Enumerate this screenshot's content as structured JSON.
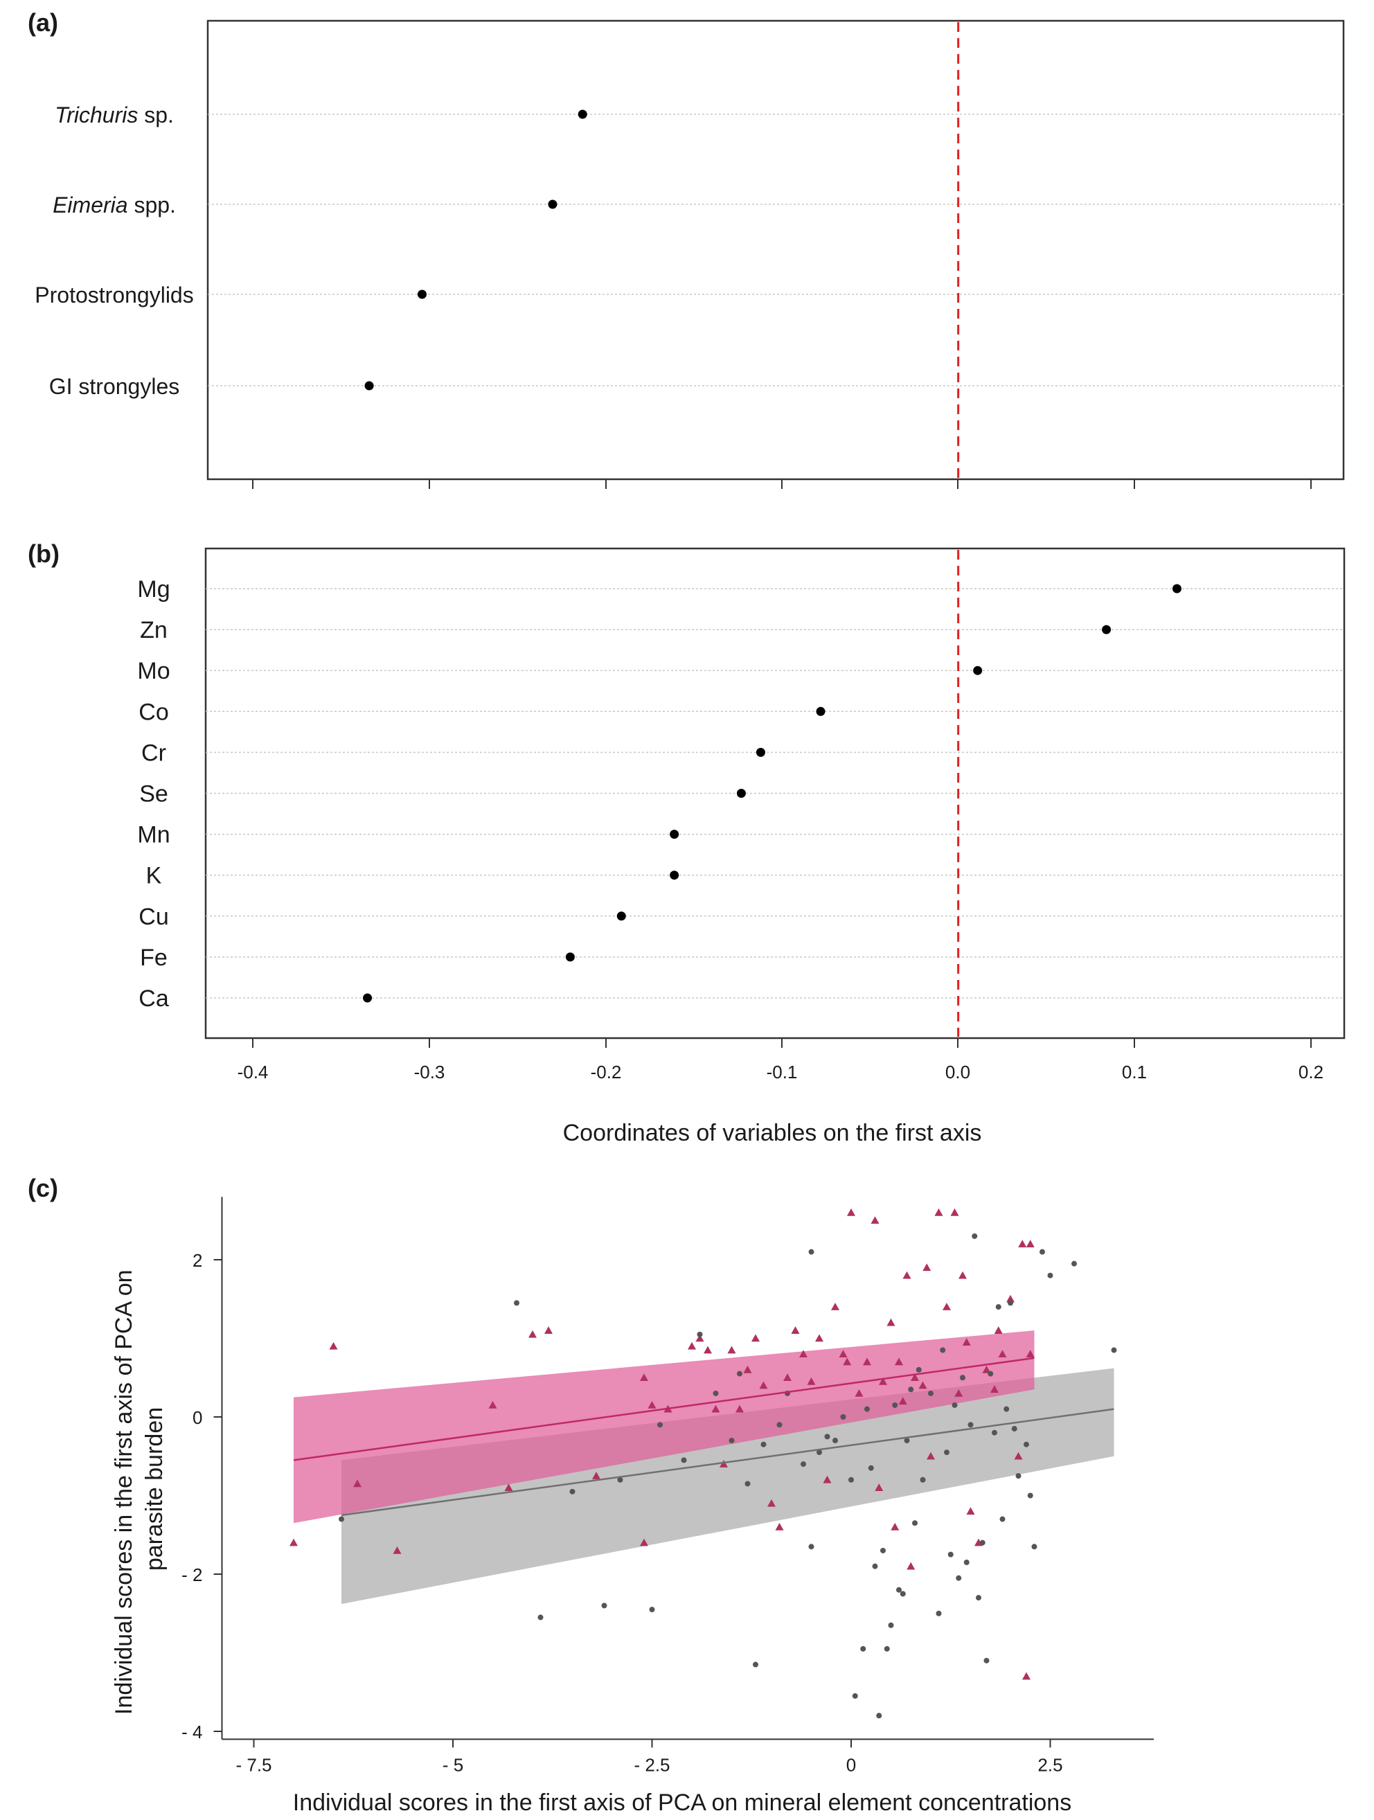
{
  "chart_data": [
    {
      "panel": "(a)",
      "type": "scatter",
      "categories": [
        "Trichuris sp.",
        "Eimeria spp.",
        "Protostrongylids",
        "GI strongyles"
      ],
      "category_labels": [
        {
          "italic": "Trichuris",
          "rest": " sp."
        },
        {
          "italic": "Eimeria",
          "rest": " spp."
        },
        {
          "italic": "",
          "rest": "Protostrongylids"
        },
        {
          "italic": "",
          "rest": "GI strongyles"
        }
      ],
      "values": [
        -0.213,
        -0.23,
        -0.304,
        -0.334
      ],
      "xlim": [
        -0.425,
        0.225
      ],
      "reference_line": 0.0,
      "grid": true,
      "xlabel": "",
      "ylabel": ""
    },
    {
      "panel": "(b)",
      "type": "scatter",
      "categories": [
        "Mg",
        "Zn",
        "Mo",
        "Co",
        "Cr",
        "Se",
        "Mn",
        "K",
        "Cu",
        "Fe",
        "Ca"
      ],
      "values": [
        0.124,
        0.084,
        0.011,
        -0.078,
        -0.112,
        -0.123,
        -0.161,
        -0.161,
        -0.191,
        -0.22,
        -0.335
      ],
      "xlim": [
        -0.425,
        0.225
      ],
      "xticks": [
        "-0.4",
        "-0.3",
        "-0.2",
        "-0.1",
        "0.0",
        "0.1",
        "0.2"
      ],
      "reference_line": 0.0,
      "grid": true,
      "xlabel": "Coordinates of variables on the first axis",
      "ylabel": ""
    },
    {
      "panel": "(c)",
      "type": "scatter",
      "xlabel": "Individual scores in the first axis of PCA on mineral element concentrations",
      "ylabel": [
        "Individual scores in the first axis of PCA on",
        "parasite burden"
      ],
      "xlim": [
        -7.9,
        3.8
      ],
      "ylim": [
        -4.1,
        2.8
      ],
      "xticks": [
        {
          "v": -7.5,
          "label": "- 7.5"
        },
        {
          "v": -5,
          "label": "- 5"
        },
        {
          "v": -2.5,
          "label": "- 2.5"
        },
        {
          "v": 0,
          "label": "0"
        },
        {
          "v": 2.5,
          "label": "2.5"
        }
      ],
      "yticks": [
        {
          "v": -4,
          "label": "- 4"
        },
        {
          "v": -2,
          "label": "- 2"
        },
        {
          "v": 0,
          "label": "0"
        },
        {
          "v": 2,
          "label": "2"
        }
      ],
      "series": [
        {
          "name": "pink",
          "marker": "triangle",
          "color": "#b03060",
          "fit_color": "#c02868",
          "band_color": "#e0609a",
          "fit": {
            "x0": -7.0,
            "y0": -0.55,
            "x1": 2.3,
            "y1": 0.75
          },
          "band": {
            "upper": [
              [
                -7.0,
                0.25
              ],
              [
                2.3,
                1.1
              ]
            ],
            "lower": [
              [
                -7.0,
                -1.35
              ],
              [
                2.3,
                0.35
              ]
            ]
          },
          "points": [
            [
              -6.5,
              0.9
            ],
            [
              -7.0,
              -1.6
            ],
            [
              -6.2,
              -0.85
            ],
            [
              -5.7,
              -1.7
            ],
            [
              -4.5,
              0.15
            ],
            [
              -4.3,
              -0.9
            ],
            [
              -4.0,
              1.05
            ],
            [
              -3.8,
              1.1
            ],
            [
              -3.2,
              -0.75
            ],
            [
              -2.6,
              0.5
            ],
            [
              -2.6,
              -1.6
            ],
            [
              -2.5,
              0.15
            ],
            [
              -2.3,
              0.1
            ],
            [
              -2.0,
              0.9
            ],
            [
              -1.9,
              1.0
            ],
            [
              -1.8,
              0.85
            ],
            [
              -1.6,
              -0.6
            ],
            [
              -1.5,
              0.85
            ],
            [
              -1.4,
              0.1
            ],
            [
              -1.3,
              0.6
            ],
            [
              -1.2,
              1.0
            ],
            [
              -1.1,
              0.4
            ],
            [
              -1.0,
              -1.1
            ],
            [
              -0.9,
              -1.4
            ],
            [
              -0.8,
              0.5
            ],
            [
              -0.7,
              1.1
            ],
            [
              -0.6,
              0.8
            ],
            [
              -0.5,
              0.45
            ],
            [
              -0.4,
              1.0
            ],
            [
              -0.3,
              -0.8
            ],
            [
              -0.2,
              1.4
            ],
            [
              -0.1,
              0.8
            ],
            [
              0.0,
              2.6
            ],
            [
              0.1,
              0.3
            ],
            [
              0.2,
              0.7
            ],
            [
              0.3,
              2.5
            ],
            [
              0.35,
              -0.9
            ],
            [
              0.4,
              0.45
            ],
            [
              0.5,
              1.2
            ],
            [
              0.55,
              -1.4
            ],
            [
              0.6,
              0.7
            ],
            [
              0.7,
              1.8
            ],
            [
              0.75,
              -1.9
            ],
            [
              0.8,
              0.5
            ],
            [
              0.9,
              0.4
            ],
            [
              0.95,
              1.9
            ],
            [
              1.0,
              -0.5
            ],
            [
              1.1,
              2.6
            ],
            [
              1.2,
              1.4
            ],
            [
              1.3,
              2.6
            ],
            [
              1.35,
              0.3
            ],
            [
              1.4,
              1.8
            ],
            [
              1.5,
              -1.2
            ],
            [
              1.6,
              -1.6
            ],
            [
              1.7,
              0.6
            ],
            [
              1.8,
              0.35
            ],
            [
              1.85,
              1.1
            ],
            [
              1.9,
              0.8
            ],
            [
              2.0,
              1.5
            ],
            [
              2.1,
              -0.5
            ],
            [
              2.15,
              2.2
            ],
            [
              2.2,
              -3.3
            ],
            [
              2.25,
              2.2
            ],
            [
              2.25,
              0.8
            ],
            [
              1.45,
              0.95
            ],
            [
              0.65,
              0.2
            ],
            [
              -0.05,
              0.7
            ],
            [
              -1.7,
              0.1
            ]
          ]
        },
        {
          "name": "gray",
          "marker": "circle",
          "color": "#555555",
          "fit_color": "#707070",
          "band_color": "#b8b8b8",
          "fit": {
            "x0": -6.4,
            "y0": -1.25,
            "x1": 3.3,
            "y1": 0.1
          },
          "band": {
            "upper": [
              [
                -6.4,
                -0.55
              ],
              [
                3.3,
                0.62
              ]
            ],
            "lower": [
              [
                -6.4,
                -2.38
              ],
              [
                3.3,
                -0.5
              ]
            ]
          },
          "points": [
            [
              -6.4,
              -1.3
            ],
            [
              -4.2,
              1.45
            ],
            [
              -3.9,
              -2.55
            ],
            [
              -3.1,
              -2.4
            ],
            [
              -2.9,
              -0.8
            ],
            [
              -2.5,
              -2.45
            ],
            [
              -2.4,
              -0.1
            ],
            [
              -2.1,
              -0.55
            ],
            [
              -1.9,
              1.05
            ],
            [
              -1.7,
              0.3
            ],
            [
              -1.5,
              -0.3
            ],
            [
              -1.3,
              -0.85
            ],
            [
              -1.2,
              -3.15
            ],
            [
              -1.1,
              -0.35
            ],
            [
              -0.9,
              -0.1
            ],
            [
              -0.8,
              0.3
            ],
            [
              -0.6,
              -0.6
            ],
            [
              -0.5,
              -1.65
            ],
            [
              -0.5,
              2.1
            ],
            [
              -0.4,
              -0.45
            ],
            [
              -0.3,
              -0.25
            ],
            [
              -0.2,
              -0.3
            ],
            [
              -0.1,
              0.0
            ],
            [
              0.0,
              -0.8
            ],
            [
              0.05,
              -3.55
            ],
            [
              0.15,
              -2.95
            ],
            [
              0.2,
              0.1
            ],
            [
              0.25,
              -0.65
            ],
            [
              0.35,
              -3.8
            ],
            [
              0.4,
              -1.7
            ],
            [
              0.45,
              -2.95
            ],
            [
              0.5,
              -2.65
            ],
            [
              0.55,
              0.15
            ],
            [
              0.6,
              -2.2
            ],
            [
              0.65,
              -2.25
            ],
            [
              0.7,
              -0.3
            ],
            [
              0.8,
              -1.35
            ],
            [
              0.85,
              0.6
            ],
            [
              0.9,
              -0.8
            ],
            [
              1.0,
              0.3
            ],
            [
              1.1,
              -2.5
            ],
            [
              1.2,
              -0.45
            ],
            [
              1.25,
              -1.75
            ],
            [
              1.3,
              0.15
            ],
            [
              1.35,
              -2.05
            ],
            [
              1.4,
              0.5
            ],
            [
              1.45,
              -1.85
            ],
            [
              1.5,
              -0.1
            ],
            [
              1.55,
              2.3
            ],
            [
              1.6,
              -2.3
            ],
            [
              1.65,
              -1.6
            ],
            [
              1.7,
              -3.1
            ],
            [
              1.75,
              0.55
            ],
            [
              1.8,
              -0.2
            ],
            [
              1.85,
              1.4
            ],
            [
              1.9,
              -1.3
            ],
            [
              2.0,
              1.45
            ],
            [
              2.05,
              -0.15
            ],
            [
              2.1,
              -0.75
            ],
            [
              2.2,
              -0.35
            ],
            [
              2.25,
              -1.0
            ],
            [
              2.3,
              -1.65
            ],
            [
              2.4,
              2.1
            ],
            [
              2.5,
              1.8
            ],
            [
              2.8,
              1.95
            ],
            [
              3.3,
              0.85
            ],
            [
              -3.5,
              -0.95
            ],
            [
              -1.4,
              0.55
            ],
            [
              0.3,
              -1.9
            ],
            [
              0.75,
              0.35
            ],
            [
              1.15,
              0.85
            ],
            [
              1.95,
              0.1
            ]
          ]
        }
      ]
    }
  ]
}
